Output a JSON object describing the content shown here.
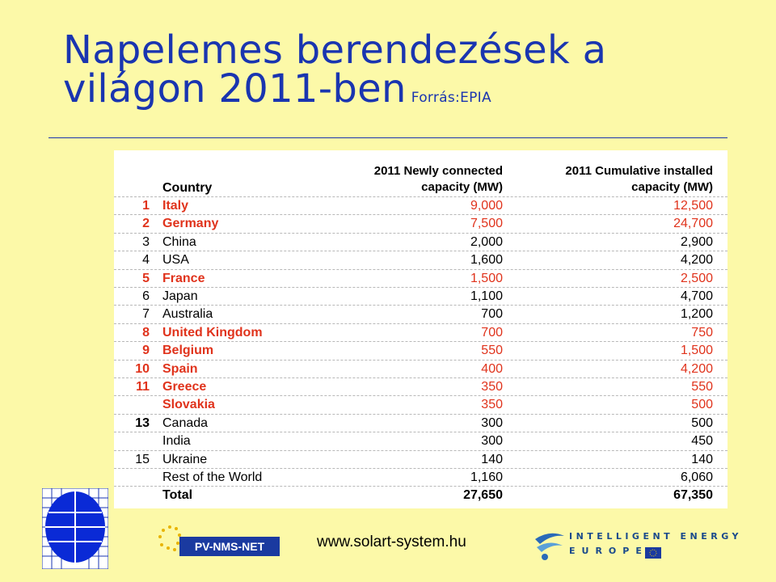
{
  "slide": {
    "title_line1": "Napelemes berendezések a",
    "title_line2": "világon 2011-ben",
    "source": "Forrás:EPIA"
  },
  "table": {
    "header_country": "Country",
    "header_new_line1": "2011 Newly connected",
    "header_new_line2": "capacity (MW)",
    "header_cum_line1": "2011 Cumulative installed",
    "header_cum_line2": "capacity (MW)",
    "rows": [
      {
        "rank": "1",
        "country": "Italy",
        "new": "9,000",
        "cum": "12,500"
      },
      {
        "rank": "2",
        "country": "Germany",
        "new": "7,500",
        "cum": "24,700"
      },
      {
        "rank": "3",
        "country": "China",
        "new": "2,000",
        "cum": "2,900"
      },
      {
        "rank": "4",
        "country": "USA",
        "new": "1,600",
        "cum": "4,200"
      },
      {
        "rank": "5",
        "country": "France",
        "new": "1,500",
        "cum": "2,500"
      },
      {
        "rank": "6",
        "country": "Japan",
        "new": "1,100",
        "cum": "4,700"
      },
      {
        "rank": "7",
        "country": "Australia",
        "new": "700",
        "cum": "1,200"
      },
      {
        "rank": "8",
        "country": "United Kingdom",
        "new": "700",
        "cum": "750"
      },
      {
        "rank": "9",
        "country": "Belgium",
        "new": "550",
        "cum": "1,500"
      },
      {
        "rank": "10",
        "country": "Spain",
        "new": "400",
        "cum": "4,200"
      },
      {
        "rank": "11",
        "country": "Greece",
        "new": "350",
        "cum": "550"
      },
      {
        "rank": "",
        "country": "Slovakia",
        "new": "350",
        "cum": "500"
      },
      {
        "rank": "13",
        "country": "Canada",
        "new": "300",
        "cum": "500"
      },
      {
        "rank": "",
        "country": "India",
        "new": "300",
        "cum": "450"
      },
      {
        "rank": "15",
        "country": "Ukraine",
        "new": "140",
        "cum": "140"
      },
      {
        "rank": "",
        "country": "Rest of the World",
        "new": "1,160",
        "cum": "6,060"
      },
      {
        "rank": "",
        "country": "Total",
        "new": "27,650",
        "cum": "67,350"
      }
    ]
  },
  "footer": {
    "pv_logo_text": "PV-NMS-NET",
    "website": "www.solart-system.hu",
    "iee_line1": "INTELLIGENT ENERGY",
    "iee_line2": "EUROPE"
  },
  "colors": {
    "background": "#fcf9a8",
    "title": "#1a35b0",
    "highlight_red": "#e0331c"
  }
}
